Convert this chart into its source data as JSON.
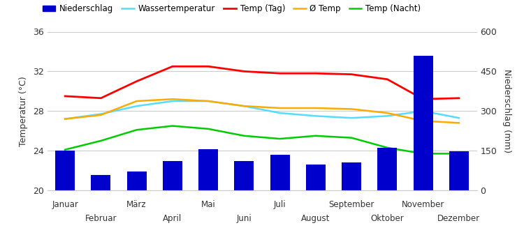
{
  "months": [
    "Januar",
    "Februar",
    "März",
    "April",
    "Mai",
    "Juni",
    "Juli",
    "August",
    "September",
    "Oktober",
    "November",
    "Dezember"
  ],
  "months_odd": [
    "Januar",
    "März",
    "Mai",
    "Juli",
    "September",
    "November"
  ],
  "months_even": [
    "Februar",
    "April",
    "Juni",
    "August",
    "Oktober",
    "Dezember"
  ],
  "niederschlag": [
    150,
    58,
    72,
    110,
    155,
    112,
    135,
    98,
    105,
    162,
    510,
    148
  ],
  "temp_tag": [
    29.5,
    29.3,
    31.0,
    32.5,
    32.5,
    32.0,
    31.8,
    31.8,
    31.7,
    31.2,
    29.2,
    29.3
  ],
  "avg_temp": [
    27.2,
    27.6,
    29.0,
    29.2,
    29.0,
    28.5,
    28.3,
    28.3,
    28.2,
    27.8,
    27.0,
    26.8
  ],
  "wasser_temp": [
    27.2,
    27.7,
    28.5,
    29.0,
    29.0,
    28.5,
    27.8,
    27.5,
    27.3,
    27.5,
    28.0,
    27.3
  ],
  "temp_nacht": [
    24.1,
    25.0,
    26.1,
    26.5,
    26.2,
    25.5,
    25.2,
    25.5,
    25.3,
    24.3,
    23.7,
    23.7
  ],
  "bar_color": "#0000cc",
  "line_color_wasser": "#55ddff",
  "line_color_tag": "#ff0000",
  "line_color_avg": "#ffaa00",
  "line_color_nacht": "#00cc00",
  "ylabel_left": "Temperatur (°C)",
  "ylabel_right": "Niederschlag (mm)",
  "ylim_left": [
    20,
    36
  ],
  "ylim_right": [
    0,
    600
  ],
  "yticks_left": [
    20,
    24,
    28,
    32,
    36
  ],
  "yticks_right": [
    0,
    150,
    300,
    450,
    600
  ],
  "background_color": "#ffffff",
  "grid_color": "#cccccc",
  "legend_labels": [
    "Niederschlag",
    "Wassertemperatur",
    "Temp (Tag)",
    "Ø Temp",
    "Temp (Nacht)"
  ]
}
